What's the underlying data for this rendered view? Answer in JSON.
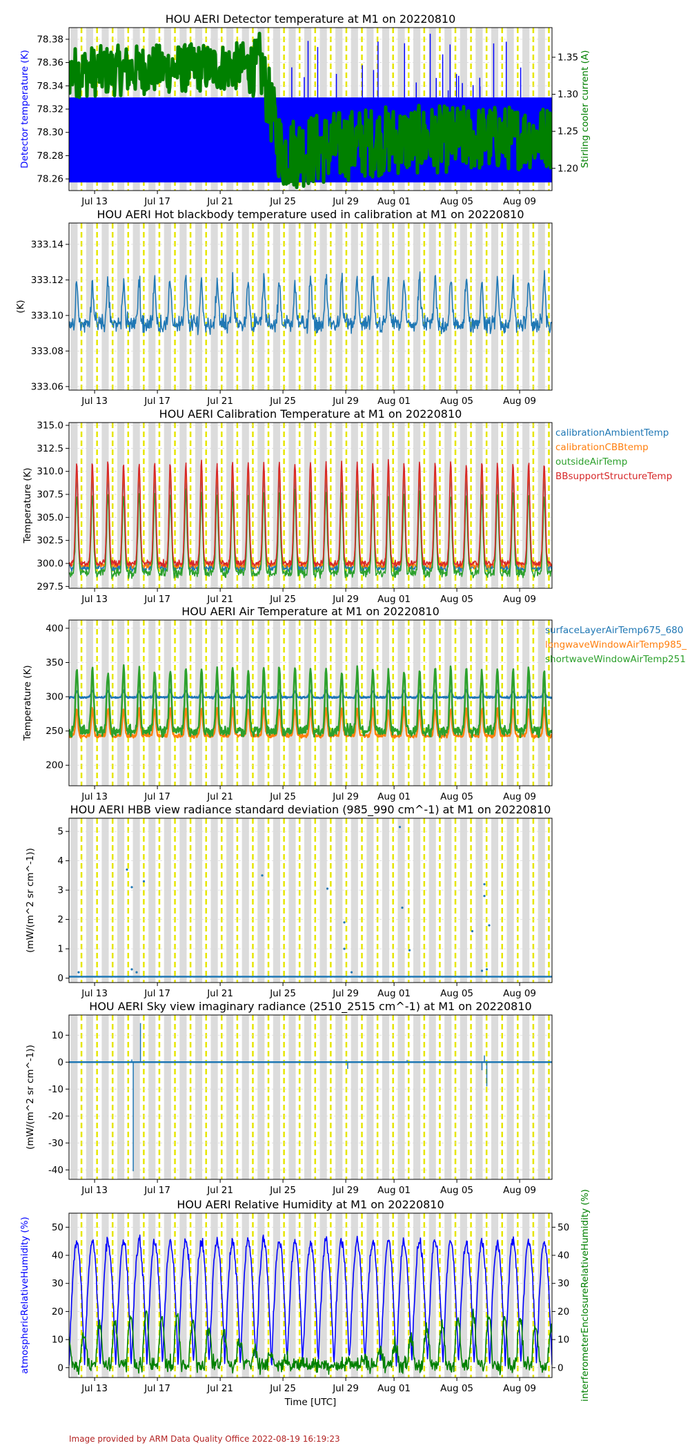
{
  "footer": "Image provided by ARM Data Quality Office 2022-08-19 16:19:23",
  "colors": {
    "axes_bg": "#ffffff",
    "night_band": "#dcdcdc",
    "day_marker": "#e6e600",
    "grid": "#d9d9d9",
    "blue": "#0000ff",
    "green": "#008000",
    "tab_blue": "#1f77b4",
    "tab_orange": "#ff7f0e",
    "tab_green": "#2ca02c",
    "tab_red": "#d62728"
  },
  "chart_data": [
    {
      "type": "line",
      "title": "HOU AERI Detector temperature at M1 on 20220810",
      "xlabel": "",
      "ylabel": "Detector temperature (K)",
      "ylabel_color": "#0000ff",
      "ylabel_right": "Stirling cooler current (A)",
      "ylabel_right_color": "#008000",
      "x_ticks": [
        "Jul 13",
        "Jul 17",
        "Jul 21",
        "Jul 25",
        "Jul 29",
        "Aug 01",
        "Aug 05",
        "Aug 09"
      ],
      "ylim": [
        78.25,
        78.39
      ],
      "yticks": [
        "78.26",
        "78.28",
        "78.30",
        "78.32",
        "78.34",
        "78.36",
        "78.38"
      ],
      "ylim_right": [
        1.17,
        1.39
      ],
      "yticks_right": [
        "1.20",
        "1.25",
        "1.30",
        "1.35"
      ],
      "series": [
        {
          "axis": "left",
          "color": "#0000ff",
          "kind": "band",
          "low": 78.257,
          "high": 78.33
        },
        {
          "axis": "right",
          "color": "#008000",
          "kind": "step-band",
          "x": [
            0,
            0.35,
            0.39,
            0.395,
            0.44,
            0.65,
            1.0
          ],
          "low": [
            1.295,
            1.305,
            1.295,
            1.3,
            1.17,
            1.19,
            1.2
          ],
          "high": [
            1.365,
            1.37,
            1.375,
            1.385,
            1.27,
            1.285,
            1.285
          ]
        }
      ]
    },
    {
      "type": "line",
      "title": "HOU AERI Hot blackbody temperature used in calibration at M1 on 20220810",
      "xlabel": "",
      "ylabel": "(K)",
      "x_ticks": [
        "Jul 13",
        "Jul 17",
        "Jul 21",
        "Jul 25",
        "Jul 29",
        "Aug 01",
        "Aug 05",
        "Aug 09"
      ],
      "ylim": [
        333.058,
        333.152
      ],
      "yticks": [
        "333.06",
        "333.08",
        "333.10",
        "333.12",
        "333.14"
      ],
      "series": [
        {
          "color": "#1f77b4",
          "kind": "diurnal",
          "base": 333.095,
          "amp": 0.025,
          "noise": 0.008
        }
      ]
    },
    {
      "type": "line",
      "title": "HOU AERI Calibration Temperature at M1 on 20220810",
      "xlabel": "",
      "ylabel": "Temperature (K)",
      "x_ticks": [
        "Jul 13",
        "Jul 17",
        "Jul 21",
        "Jul 25",
        "Jul 29",
        "Aug 01",
        "Aug 05",
        "Aug 09"
      ],
      "ylim": [
        297.3,
        315.3
      ],
      "yticks": [
        "297.5",
        "300.0",
        "302.5",
        "305.0",
        "307.5",
        "310.0",
        "312.5",
        "315.0"
      ],
      "legend_location": "outside right",
      "series": [
        {
          "name": "calibrationAmbientTemp",
          "color": "#1f77b4",
          "kind": "diurnal",
          "base": 299.5,
          "amp": 10.0,
          "noise": 0.6
        },
        {
          "name": "calibrationCBBtemp",
          "color": "#ff7f0e",
          "kind": "diurnal",
          "base": 299.8,
          "amp": 10.5,
          "noise": 0.5
        },
        {
          "name": "outsideAirTemp",
          "color": "#2ca02c",
          "kind": "diurnal",
          "base": 299.0,
          "amp": 8.5,
          "noise": 0.8
        },
        {
          "name": "BBsupportStructureTemp",
          "color": "#d62728",
          "kind": "diurnal",
          "base": 300.0,
          "amp": 11.0,
          "noise": 0.5
        }
      ]
    },
    {
      "type": "scatter",
      "title": "HOU AERI Air Temperature at M1 on 20220810",
      "xlabel": "",
      "ylabel": "Temperature (K)",
      "x_ticks": [
        "Jul 13",
        "Jul 17",
        "Jul 21",
        "Jul 25",
        "Jul 29",
        "Aug 01",
        "Aug 05",
        "Aug 09"
      ],
      "ylim": [
        170,
        412
      ],
      "yticks": [
        "200",
        "250",
        "300",
        "350",
        "400"
      ],
      "legend_location": "outside right",
      "series": [
        {
          "name": "surfaceLayerAirTemp675_680",
          "color": "#1f77b4",
          "kind": "diurnal",
          "base": 299,
          "amp": 10,
          "noise": 2
        },
        {
          "name": "longwaveWindowAirTemp985_",
          "color": "#ff7f0e",
          "kind": "diurnal",
          "base": 243,
          "amp": 40,
          "noise": 4
        },
        {
          "name": "shortwaveWindowAirTemp251",
          "color": "#2ca02c",
          "kind": "diurnal",
          "base": 250,
          "amp": 90,
          "noise": 12
        }
      ]
    },
    {
      "type": "scatter",
      "title": "HOU AERI HBB view radiance standard deviation (985_990 cm^-1) at M1 on 20220810",
      "xlabel": "",
      "ylabel": "(mW/(m^2 sr cm^-1))",
      "x_ticks": [
        "Jul 13",
        "Jul 17",
        "Jul 21",
        "Jul 25",
        "Jul 29",
        "Aug 01",
        "Aug 05",
        "Aug 09"
      ],
      "ylim": [
        -0.15,
        5.45
      ],
      "yticks": [
        "0",
        "1",
        "2",
        "3",
        "4",
        "5"
      ],
      "series": [
        {
          "color": "#1f77b4",
          "kind": "flat",
          "value": 0.05,
          "outliers": [
            [
              0.12,
              3.7
            ],
            [
              0.13,
              3.1
            ],
            [
              0.155,
              3.3
            ],
            [
              0.13,
              0.3
            ],
            [
              0.14,
              0.2
            ],
            [
              0.4,
              3.5
            ],
            [
              0.535,
              3.05
            ],
            [
              0.57,
              1.9
            ],
            [
              0.57,
              1.0
            ],
            [
              0.585,
              0.2
            ],
            [
              0.685,
              5.15
            ],
            [
              0.69,
              2.4
            ],
            [
              0.705,
              0.95
            ],
            [
              0.835,
              1.6
            ],
            [
              0.86,
              3.2
            ],
            [
              0.86,
              2.8
            ],
            [
              0.87,
              1.8
            ],
            [
              0.865,
              0.3
            ],
            [
              0.855,
              0.25
            ],
            [
              0.02,
              0.2
            ]
          ]
        }
      ]
    },
    {
      "type": "line",
      "title": "HOU AERI Sky view imaginary radiance (2510_2515 cm^-1) at M1 on 20220810",
      "xlabel": "",
      "ylabel": "(mW/(m^2 sr cm^-1))",
      "x_ticks": [
        "Jul 13",
        "Jul 17",
        "Jul 21",
        "Jul 25",
        "Jul 29",
        "Aug 01",
        "Aug 05",
        "Aug 09"
      ],
      "ylim": [
        -43.5,
        17.5
      ],
      "yticks": [
        "-40",
        "-30",
        "-20",
        "-10",
        "0",
        "10"
      ],
      "series": [
        {
          "color": "#1f77b4",
          "kind": "flat",
          "value": 0,
          "spikes": [
            [
              0.13,
              1.0
            ],
            [
              0.133,
              -40.5
            ],
            [
              0.148,
              14.5
            ],
            [
              0.577,
              -2.5
            ],
            [
              0.7,
              0.8
            ],
            [
              0.855,
              -3.0
            ],
            [
              0.86,
              2.5
            ],
            [
              0.865,
              -9.0
            ]
          ]
        }
      ]
    },
    {
      "type": "line",
      "title": "HOU AERI Relative Humidity at M1 on 20220810",
      "xlabel": "Time [UTC]",
      "ylabel": "atmosphericRelativeHumidity (%)",
      "ylabel_color": "#0000ff",
      "ylabel_right": "interferometerEnclosureRelativeHumidity (%)",
      "ylabel_right_color": "#008000",
      "x_ticks": [
        "Jul 13",
        "Jul 17",
        "Jul 21",
        "Jul 25",
        "Jul 29",
        "Aug 01",
        "Aug 05",
        "Aug 09"
      ],
      "ylim": [
        -3.5,
        55
      ],
      "yticks": [
        "0",
        "10",
        "20",
        "30",
        "40",
        "50"
      ],
      "ylim_right": [
        -3.5,
        55
      ],
      "yticks_right": [
        "0",
        "10",
        "20",
        "30",
        "40",
        "50"
      ],
      "series": [
        {
          "axis": "left",
          "color": "#0000ff",
          "kind": "rh",
          "base": 1,
          "amp": 44,
          "noise": 3
        },
        {
          "axis": "right",
          "color": "#008000",
          "kind": "rh2",
          "base": 1,
          "amp": 18,
          "noise": 4
        }
      ]
    }
  ]
}
